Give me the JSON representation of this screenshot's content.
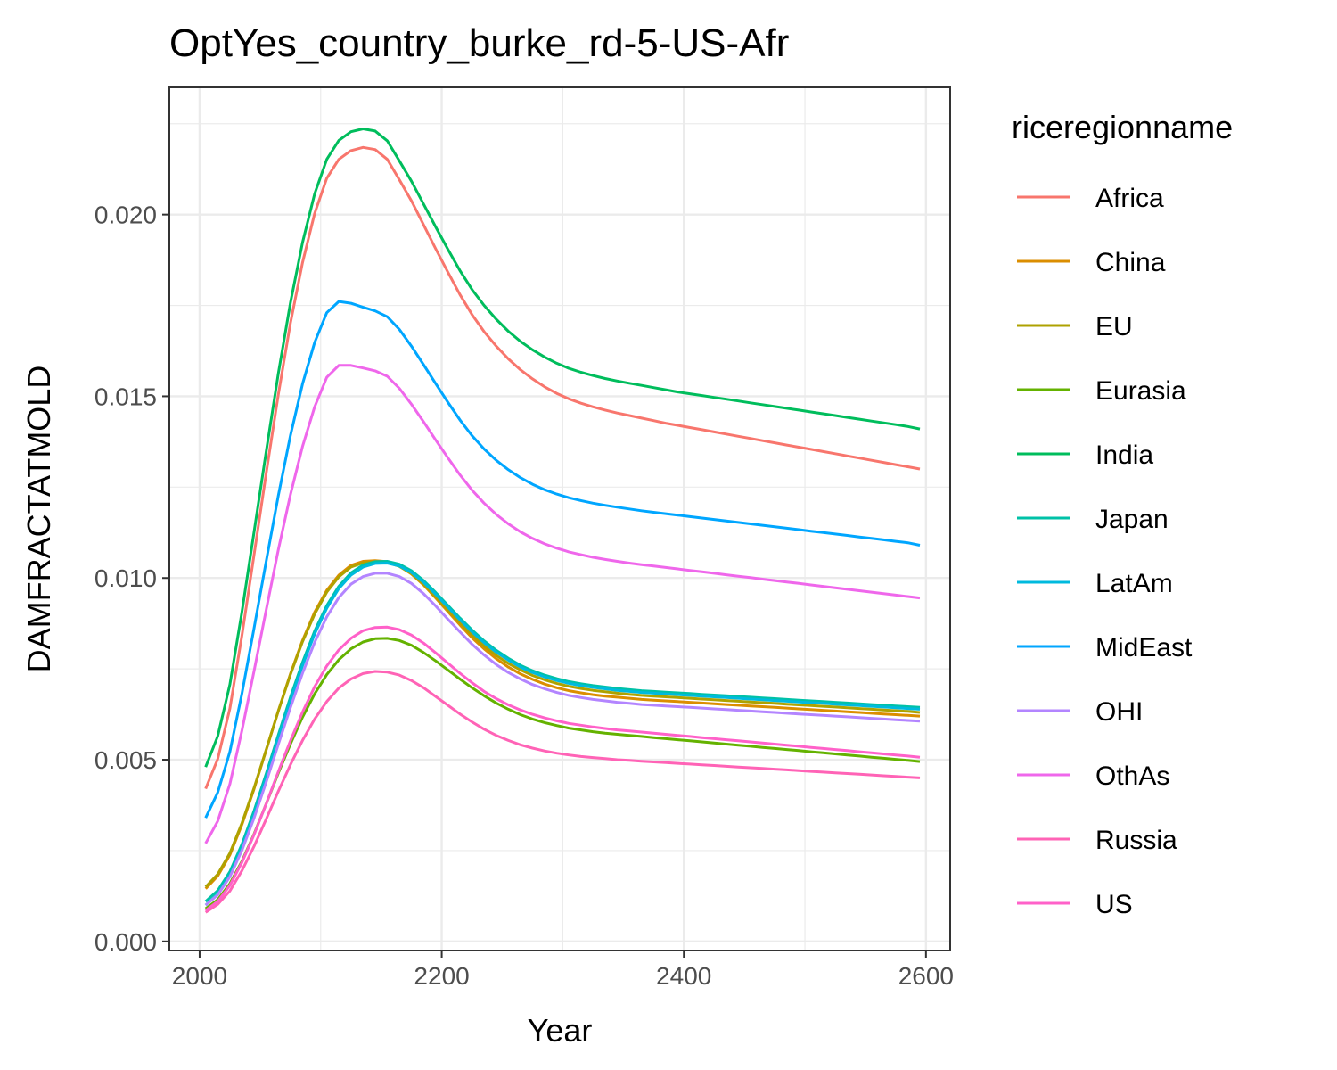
{
  "chart_data": {
    "type": "line",
    "title": "OptYes_country_burke_rd-5-US-Afr",
    "xlabel": "Year",
    "ylabel": "DAMFRACTATMOLD",
    "xlim": [
      1975,
      2620
    ],
    "ylim": [
      -0.00025,
      0.0235
    ],
    "x_ticks": [
      2000,
      2200,
      2400,
      2600
    ],
    "x_tick_labels": [
      "2000",
      "2200",
      "2400",
      "2600"
    ],
    "y_ticks": [
      0.0,
      0.005,
      0.01,
      0.015,
      0.02
    ],
    "y_tick_labels": [
      "0.000",
      "0.005",
      "0.010",
      "0.015",
      "0.020"
    ],
    "grid": true,
    "legend": {
      "title": "riceregionname",
      "position": "right"
    },
    "x": [
      2005,
      2015,
      2025,
      2035,
      2045,
      2055,
      2065,
      2075,
      2085,
      2095,
      2105,
      2115,
      2125,
      2135,
      2145,
      2155,
      2165,
      2175,
      2185,
      2195,
      2205,
      2215,
      2225,
      2235,
      2245,
      2255,
      2265,
      2275,
      2285,
      2295,
      2305,
      2315,
      2325,
      2335,
      2345,
      2355,
      2365,
      2375,
      2385,
      2395,
      2405,
      2415,
      2425,
      2435,
      2445,
      2455,
      2465,
      2475,
      2485,
      2495,
      2505,
      2515,
      2525,
      2535,
      2545,
      2555,
      2565,
      2575,
      2585,
      2595
    ],
    "series": [
      {
        "name": "Africa",
        "color": "#F8766D",
        "values": [
          0.0042,
          0.00502,
          0.00641,
          0.00843,
          0.01065,
          0.01289,
          0.01504,
          0.01701,
          0.01868,
          0.02003,
          0.021,
          0.02152,
          0.02176,
          0.02185,
          0.02179,
          0.02152,
          0.02096,
          0.02038,
          0.01972,
          0.01906,
          0.01842,
          0.0178,
          0.01725,
          0.01678,
          0.01638,
          0.01603,
          0.01573,
          0.01548,
          0.01526,
          0.01508,
          0.01493,
          0.01481,
          0.01471,
          0.01462,
          0.01454,
          0.01447,
          0.0144,
          0.01433,
          0.01426,
          0.0142,
          0.01414,
          0.01408,
          0.01402,
          0.01396,
          0.0139,
          0.01384,
          0.01378,
          0.01372,
          0.01366,
          0.0136,
          0.01354,
          0.01348,
          0.01342,
          0.01336,
          0.0133,
          0.01324,
          0.01318,
          0.01312,
          0.01306,
          0.013
        ]
      },
      {
        "name": "China",
        "color": "#DB8E00",
        "values": [
          0.00145,
          0.0018,
          0.00238,
          0.00322,
          0.0042,
          0.00527,
          0.00634,
          0.00736,
          0.00828,
          0.00906,
          0.00966,
          0.01008,
          0.01035,
          0.01046,
          0.01048,
          0.01045,
          0.01033,
          0.01011,
          0.00981,
          0.00945,
          0.00908,
          0.00871,
          0.00836,
          0.00805,
          0.00778,
          0.00755,
          0.00736,
          0.00721,
          0.00708,
          0.00698,
          0.0069,
          0.00684,
          0.00679,
          0.00675,
          0.00672,
          0.00669,
          0.00666,
          0.00664,
          0.00662,
          0.0066,
          0.00658,
          0.00656,
          0.00654,
          0.00652,
          0.0065,
          0.00648,
          0.00646,
          0.00644,
          0.00642,
          0.0064,
          0.00638,
          0.00636,
          0.00634,
          0.00632,
          0.0063,
          0.00628,
          0.00626,
          0.00624,
          0.00622,
          0.0062
        ]
      },
      {
        "name": "EU",
        "color": "#AEA200",
        "values": [
          0.0015,
          0.00185,
          0.00243,
          0.00326,
          0.00423,
          0.00528,
          0.00634,
          0.00734,
          0.00825,
          0.00901,
          0.00961,
          0.01003,
          0.0103,
          0.01042,
          0.01045,
          0.01043,
          0.01032,
          0.01012,
          0.00984,
          0.00949,
          0.00913,
          0.00877,
          0.00843,
          0.00813,
          0.00787,
          0.00765,
          0.00747,
          0.00732,
          0.0072,
          0.0071,
          0.00702,
          0.00696,
          0.00691,
          0.00687,
          0.00683,
          0.0068,
          0.00677,
          0.00675,
          0.00673,
          0.00671,
          0.00669,
          0.00667,
          0.00665,
          0.00663,
          0.00661,
          0.00659,
          0.00657,
          0.00655,
          0.00653,
          0.00651,
          0.00649,
          0.00647,
          0.00645,
          0.00643,
          0.00641,
          0.00639,
          0.00637,
          0.00635,
          0.00633,
          0.0063
        ]
      },
      {
        "name": "Eurasia",
        "color": "#64B200",
        "values": [
          0.0009,
          0.00115,
          0.00159,
          0.00221,
          0.00296,
          0.00379,
          0.00463,
          0.00543,
          0.00617,
          0.00681,
          0.00734,
          0.00775,
          0.00805,
          0.00824,
          0.00833,
          0.00834,
          0.00828,
          0.00815,
          0.00795,
          0.00772,
          0.00747,
          0.00722,
          0.00698,
          0.00676,
          0.00656,
          0.00639,
          0.00624,
          0.00612,
          0.00602,
          0.00594,
          0.00587,
          0.00582,
          0.00577,
          0.00573,
          0.0057,
          0.00567,
          0.00564,
          0.00561,
          0.00558,
          0.00555,
          0.00552,
          0.00549,
          0.00546,
          0.00543,
          0.0054,
          0.00537,
          0.00534,
          0.00531,
          0.00528,
          0.00525,
          0.00522,
          0.00519,
          0.00516,
          0.00513,
          0.0051,
          0.00507,
          0.00504,
          0.00501,
          0.00498,
          0.00495
        ]
      },
      {
        "name": "India",
        "color": "#00BD5C",
        "values": [
          0.0048,
          0.00565,
          0.00707,
          0.00908,
          0.01128,
          0.01349,
          0.01562,
          0.01757,
          0.01923,
          0.02057,
          0.02152,
          0.02204,
          0.02228,
          0.02236,
          0.0223,
          0.02203,
          0.02148,
          0.02092,
          0.02029,
          0.01966,
          0.01905,
          0.01846,
          0.01794,
          0.0175,
          0.01712,
          0.01679,
          0.01651,
          0.01628,
          0.01608,
          0.01591,
          0.01577,
          0.01566,
          0.01557,
          0.01549,
          0.01542,
          0.01536,
          0.0153,
          0.01524,
          0.01518,
          0.01512,
          0.01507,
          0.01502,
          0.01497,
          0.01492,
          0.01487,
          0.01482,
          0.01477,
          0.01472,
          0.01467,
          0.01462,
          0.01457,
          0.01452,
          0.01447,
          0.01442,
          0.01437,
          0.01432,
          0.01427,
          0.01422,
          0.01417,
          0.0141
        ]
      },
      {
        "name": "Japan",
        "color": "#00C1A7",
        "values": [
          0.0011,
          0.0014,
          0.00192,
          0.00268,
          0.0036,
          0.00462,
          0.00568,
          0.00672,
          0.00768,
          0.00854,
          0.00924,
          0.00977,
          0.01014,
          0.01036,
          0.01045,
          0.01046,
          0.01038,
          0.0102,
          0.00993,
          0.0096,
          0.00925,
          0.0089,
          0.00857,
          0.00827,
          0.00801,
          0.00779,
          0.0076,
          0.00745,
          0.00733,
          0.00723,
          0.00715,
          0.00709,
          0.00704,
          0.007,
          0.00696,
          0.00693,
          0.0069,
          0.00688,
          0.00686,
          0.00684,
          0.00682,
          0.0068,
          0.00678,
          0.00676,
          0.00674,
          0.00672,
          0.0067,
          0.00668,
          0.00666,
          0.00664,
          0.00662,
          0.0066,
          0.00658,
          0.00656,
          0.00654,
          0.00652,
          0.0065,
          0.00648,
          0.00646,
          0.00644
        ]
      },
      {
        "name": "LatAm",
        "color": "#00BADE",
        "values": [
          0.001,
          0.0013,
          0.00182,
          0.00258,
          0.0035,
          0.00452,
          0.00558,
          0.00662,
          0.00759,
          0.00846,
          0.00917,
          0.00971,
          0.01008,
          0.0103,
          0.0104,
          0.01041,
          0.01033,
          0.01015,
          0.00988,
          0.00955,
          0.0092,
          0.00885,
          0.00852,
          0.00822,
          0.00796,
          0.00774,
          0.00755,
          0.0074,
          0.00728,
          0.00718,
          0.0071,
          0.00704,
          0.00699,
          0.00695,
          0.00691,
          0.00688,
          0.00685,
          0.00683,
          0.00681,
          0.00679,
          0.00677,
          0.00675,
          0.00673,
          0.00671,
          0.00669,
          0.00667,
          0.00665,
          0.00663,
          0.00661,
          0.00659,
          0.00657,
          0.00655,
          0.00653,
          0.00651,
          0.00649,
          0.00647,
          0.00645,
          0.00643,
          0.00641,
          0.00639
        ]
      },
      {
        "name": "MidEast",
        "color": "#00A6FF",
        "values": [
          0.0034,
          0.0041,
          0.00522,
          0.00683,
          0.00863,
          0.01047,
          0.01226,
          0.01392,
          0.01534,
          0.01648,
          0.0173,
          0.01761,
          0.01756,
          0.01745,
          0.01735,
          0.01719,
          0.01684,
          0.01638,
          0.01587,
          0.01535,
          0.01484,
          0.01435,
          0.01392,
          0.01355,
          0.01324,
          0.01298,
          0.01276,
          0.01258,
          0.01243,
          0.01231,
          0.01221,
          0.01213,
          0.01206,
          0.012,
          0.01195,
          0.0119,
          0.01185,
          0.01181,
          0.01177,
          0.01173,
          0.01169,
          0.01165,
          0.01161,
          0.01157,
          0.01153,
          0.01149,
          0.01145,
          0.01141,
          0.01137,
          0.01133,
          0.01129,
          0.01125,
          0.01121,
          0.01117,
          0.01113,
          0.01109,
          0.01105,
          0.01101,
          0.01097,
          0.0109
        ]
      },
      {
        "name": "OHI",
        "color": "#B385FF",
        "values": [
          0.001,
          0.00128,
          0.00178,
          0.00251,
          0.0034,
          0.00439,
          0.00542,
          0.00643,
          0.00738,
          0.00823,
          0.00893,
          0.00946,
          0.00983,
          0.01004,
          0.01013,
          0.01013,
          0.01004,
          0.00985,
          0.00957,
          0.00923,
          0.00887,
          0.00852,
          0.00818,
          0.00788,
          0.00762,
          0.0074,
          0.00722,
          0.00707,
          0.00695,
          0.00685,
          0.00677,
          0.00671,
          0.00666,
          0.00662,
          0.00658,
          0.00655,
          0.00652,
          0.0065,
          0.00648,
          0.00646,
          0.00644,
          0.00642,
          0.0064,
          0.00638,
          0.00636,
          0.00634,
          0.00632,
          0.0063,
          0.00628,
          0.00626,
          0.00624,
          0.00622,
          0.0062,
          0.00618,
          0.00616,
          0.00614,
          0.00612,
          0.0061,
          0.00608,
          0.00606
        ]
      },
      {
        "name": "OthAs",
        "color": "#EF67EB",
        "values": [
          0.0027,
          0.00331,
          0.00433,
          0.00581,
          0.00745,
          0.00913,
          0.01077,
          0.01229,
          0.01362,
          0.01471,
          0.01552,
          0.01585,
          0.01585,
          0.01578,
          0.0157,
          0.01555,
          0.01522,
          0.01478,
          0.0143,
          0.0138,
          0.01331,
          0.01284,
          0.01242,
          0.01206,
          0.01175,
          0.01149,
          0.01127,
          0.01109,
          0.01094,
          0.01082,
          0.01072,
          0.01064,
          0.01057,
          0.01051,
          0.01046,
          0.01041,
          0.01037,
          0.01033,
          0.01029,
          0.01025,
          0.01021,
          0.01017,
          0.01013,
          0.01009,
          0.01005,
          0.01001,
          0.00997,
          0.00993,
          0.00989,
          0.00985,
          0.00981,
          0.00977,
          0.00973,
          0.00969,
          0.00965,
          0.00961,
          0.00957,
          0.00953,
          0.00949,
          0.00945
        ]
      },
      {
        "name": "Russia",
        "color": "#FF63B6",
        "values": [
          0.0008,
          0.00102,
          0.00139,
          0.00195,
          0.00262,
          0.00337,
          0.00413,
          0.00486,
          0.00553,
          0.00612,
          0.0066,
          0.00697,
          0.00722,
          0.00737,
          0.00743,
          0.00741,
          0.00733,
          0.00718,
          0.00698,
          0.00674,
          0.0065,
          0.00626,
          0.00604,
          0.00584,
          0.00567,
          0.00553,
          0.00541,
          0.00532,
          0.00524,
          0.00518,
          0.00513,
          0.00509,
          0.00506,
          0.00503,
          0.005,
          0.00498,
          0.00496,
          0.00494,
          0.00492,
          0.0049,
          0.00488,
          0.00486,
          0.00484,
          0.00482,
          0.0048,
          0.00478,
          0.00476,
          0.00474,
          0.00472,
          0.0047,
          0.00468,
          0.00466,
          0.00464,
          0.00462,
          0.0046,
          0.00458,
          0.00456,
          0.00454,
          0.00452,
          0.0045
        ]
      },
      {
        "name": "US",
        "color": "#FF61C9",
        "values": [
          0.00085,
          0.0011,
          0.00154,
          0.00218,
          0.00294,
          0.00379,
          0.00467,
          0.00552,
          0.00631,
          0.00701,
          0.00758,
          0.00802,
          0.00834,
          0.00855,
          0.00864,
          0.00865,
          0.00858,
          0.00843,
          0.00821,
          0.00794,
          0.00766,
          0.00738,
          0.00712,
          0.00688,
          0.00668,
          0.00651,
          0.00637,
          0.00625,
          0.00615,
          0.00607,
          0.006,
          0.00595,
          0.0059,
          0.00586,
          0.00582,
          0.00579,
          0.00576,
          0.00573,
          0.0057,
          0.00567,
          0.00564,
          0.00561,
          0.00558,
          0.00555,
          0.00552,
          0.00549,
          0.00546,
          0.00543,
          0.0054,
          0.00537,
          0.00534,
          0.00531,
          0.00528,
          0.00525,
          0.00522,
          0.00519,
          0.00516,
          0.00513,
          0.0051,
          0.00507
        ]
      }
    ]
  }
}
